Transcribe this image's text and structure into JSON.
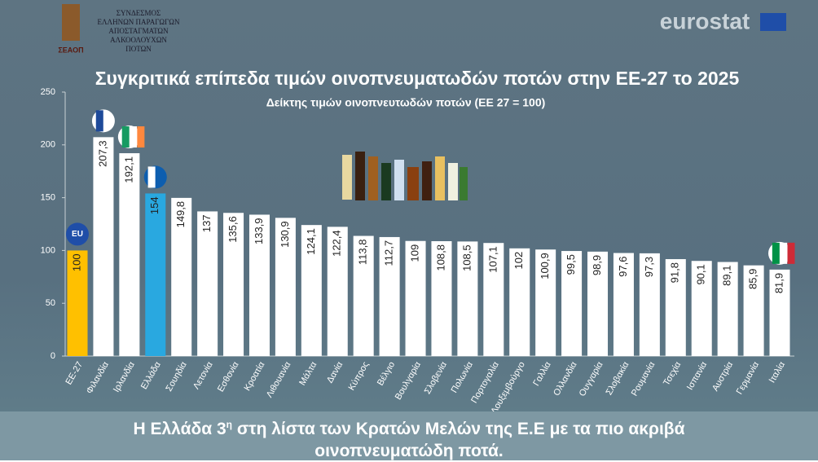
{
  "logo": {
    "lines": [
      "ΣΥΝΔΕΣΜΟΣ",
      "ΕΛΛΗΝΩΝ ΠΑΡΑΓΩΓΩΝ",
      "ΑΠΟΣΤΑΓΜΑΤΩΝ",
      "ΑΛΚΟΟΛΟΥΧΩΝ",
      "ΠΟΤΩΝ"
    ],
    "abbr": "ΣΕΑΟΠ"
  },
  "brand": "eurostat",
  "eu_badge": "EU",
  "chart_data": {
    "type": "bar",
    "title": "Συγκριτικά επίπεδα τιμών οινοπνευματωδών ποτών στην ΕΕ-27 το 2025",
    "subtitle": "Δείκτης τιμών οινοπνευτωδών ποτών (ΕΕ 27 = 100)",
    "categories": [
      "ΕΕ-27",
      "Φιλανδία",
      "Ιρλανδία",
      "Ελλάδα",
      "Σουηδία",
      "Λετονία",
      "Εσθονία",
      "Κροατία",
      "Λιθουανία",
      "Μάλτα",
      "Δανία",
      "Κύπρος",
      "Βέλγιο",
      "Βουλγαρία",
      "Σλοβενία",
      "Πολωνία",
      "Πορτογαλία",
      "Λουξεμβούργο",
      "Γαλλία",
      "Ολλανδία",
      "Ουγγαρία",
      "Σλοβακία",
      "Ρουμανία",
      "Τσεχία",
      "Ισπανία",
      "Αυστρία",
      "Γερμανία",
      "Ιταλία"
    ],
    "values": [
      100,
      207.3,
      192.1,
      154,
      149.8,
      137,
      135.6,
      133.9,
      130.9,
      124.1,
      122.4,
      113.8,
      112.7,
      109,
      108.8,
      108.5,
      107.1,
      102,
      100.9,
      99.5,
      98.9,
      97.6,
      97.3,
      91.8,
      90.1,
      89.1,
      85.9,
      81.9
    ],
    "value_labels": [
      "100",
      "207,3",
      "192,1",
      "154",
      "149,8",
      "137",
      "135,6",
      "133,9",
      "130,9",
      "124,1",
      "122,4",
      "113,8",
      "112,7",
      "109",
      "108,8",
      "108,5",
      "107,1",
      "102",
      "100,9",
      "99,5",
      "98,9",
      "97,6",
      "97,3",
      "91,8",
      "90,1",
      "89,1",
      "85,9",
      "81,9"
    ],
    "colors": [
      "#ffc000",
      "#ffffff",
      "#ffffff",
      "#29a8e0",
      "#ffffff",
      "#ffffff",
      "#ffffff",
      "#ffffff",
      "#ffffff",
      "#ffffff",
      "#ffffff",
      "#ffffff",
      "#ffffff",
      "#ffffff",
      "#ffffff",
      "#ffffff",
      "#ffffff",
      "#ffffff",
      "#ffffff",
      "#ffffff",
      "#ffffff",
      "#ffffff",
      "#ffffff",
      "#ffffff",
      "#ffffff",
      "#ffffff",
      "#ffffff",
      "#ffffff"
    ],
    "ylim": [
      0,
      250
    ],
    "yticks": [
      0,
      50,
      100,
      150,
      200,
      250
    ]
  },
  "footer": {
    "pre": "Η Ελλάδα 3",
    "sup": "η",
    "post": " στη λίστα των Κρατών Μελών της Ε.Ε με τα πιο ακριβά",
    "line2": "οινοπνευματώδη ποτά."
  }
}
